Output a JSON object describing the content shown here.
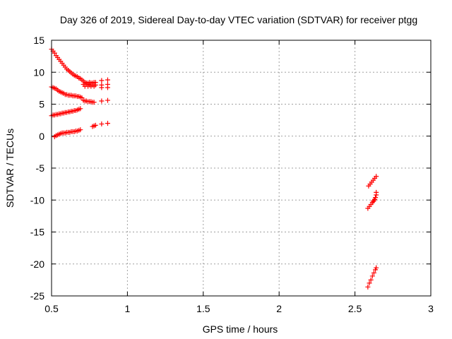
{
  "chart_data": {
    "type": "scatter",
    "title": "Day 326 of 2019, Sidereal Day-to-day VTEC variation (SDTVAR) for receiver ptgg",
    "xlabel": "GPS time / hours",
    "ylabel": "SDTVAR / TECUs",
    "xlim": [
      0.5,
      3
    ],
    "ylim": [
      -25,
      15
    ],
    "xticks": [
      0.5,
      1,
      1.5,
      2,
      2.5,
      3
    ],
    "yticks": [
      -25,
      -20,
      -15,
      -10,
      -5,
      0,
      5,
      10,
      15
    ],
    "xtick_labels": [
      "0.5",
      "1",
      "1.5",
      "2",
      "2.5",
      "3"
    ],
    "ytick_labels": [
      "-25",
      "-20",
      "-15",
      "-10",
      "-5",
      "0",
      "5",
      "10",
      "15"
    ],
    "grid": true,
    "marker": "plus",
    "color": "#ff0000",
    "series": [
      {
        "points": [
          [
            0.5,
            13.6
          ],
          [
            0.51,
            13.3
          ],
          [
            0.52,
            13.0
          ],
          [
            0.53,
            12.6
          ],
          [
            0.54,
            12.3
          ],
          [
            0.55,
            12.0
          ],
          [
            0.56,
            11.7
          ],
          [
            0.57,
            11.4
          ],
          [
            0.58,
            11.1
          ],
          [
            0.59,
            10.8
          ],
          [
            0.6,
            10.5
          ],
          [
            0.61,
            10.3
          ],
          [
            0.62,
            10.1
          ],
          [
            0.63,
            9.9
          ],
          [
            0.64,
            9.7
          ],
          [
            0.65,
            9.5
          ],
          [
            0.66,
            9.4
          ],
          [
            0.67,
            9.3
          ],
          [
            0.68,
            9.1
          ],
          [
            0.69,
            9.0
          ],
          [
            0.7,
            8.8
          ],
          [
            0.71,
            8.6
          ],
          [
            0.72,
            8.4
          ],
          [
            0.73,
            8.3
          ],
          [
            0.74,
            8.3
          ],
          [
            0.75,
            8.4
          ],
          [
            0.76,
            8.3
          ],
          [
            0.77,
            8.3
          ],
          [
            0.78,
            8.4
          ],
          [
            0.79,
            8.4
          ],
          [
            0.71,
            8.1
          ],
          [
            0.72,
            8.1
          ],
          [
            0.73,
            8.1
          ],
          [
            0.74,
            8.1
          ],
          [
            0.75,
            8.0
          ],
          [
            0.76,
            8.0
          ],
          [
            0.77,
            8.0
          ],
          [
            0.78,
            8.0
          ],
          [
            0.79,
            8.0
          ],
          [
            0.72,
            7.8
          ],
          [
            0.74,
            7.8
          ],
          [
            0.76,
            7.8
          ],
          [
            0.78,
            7.8
          ],
          [
            0.83,
            8.7
          ],
          [
            0.83,
            8.0
          ],
          [
            0.83,
            7.6
          ],
          [
            0.87,
            8.8
          ],
          [
            0.87,
            8.1
          ],
          [
            0.87,
            7.6
          ]
        ]
      },
      {
        "points": [
          [
            0.5,
            7.7
          ],
          [
            0.51,
            7.6
          ],
          [
            0.52,
            7.5
          ],
          [
            0.53,
            7.4
          ],
          [
            0.54,
            7.2
          ],
          [
            0.55,
            7.0
          ],
          [
            0.56,
            6.9
          ],
          [
            0.57,
            6.8
          ],
          [
            0.58,
            6.7
          ],
          [
            0.59,
            6.5
          ],
          [
            0.6,
            6.5
          ],
          [
            0.61,
            6.4
          ],
          [
            0.62,
            6.4
          ],
          [
            0.63,
            6.4
          ],
          [
            0.64,
            6.3
          ],
          [
            0.65,
            6.3
          ],
          [
            0.66,
            6.3
          ],
          [
            0.67,
            6.2
          ],
          [
            0.68,
            6.2
          ],
          [
            0.69,
            6.1
          ],
          [
            0.7,
            6.0
          ],
          [
            0.71,
            5.6
          ],
          [
            0.72,
            5.5
          ],
          [
            0.73,
            5.5
          ],
          [
            0.74,
            5.4
          ],
          [
            0.75,
            5.4
          ],
          [
            0.76,
            5.4
          ],
          [
            0.77,
            5.3
          ],
          [
            0.78,
            5.3
          ],
          [
            0.83,
            5.5
          ],
          [
            0.87,
            5.6
          ]
        ]
      },
      {
        "points": [
          [
            0.5,
            3.2
          ],
          [
            0.51,
            3.3
          ],
          [
            0.52,
            3.3
          ],
          [
            0.53,
            3.4
          ],
          [
            0.54,
            3.4
          ],
          [
            0.55,
            3.5
          ],
          [
            0.56,
            3.5
          ],
          [
            0.57,
            3.6
          ],
          [
            0.58,
            3.6
          ],
          [
            0.59,
            3.7
          ],
          [
            0.6,
            3.7
          ],
          [
            0.61,
            3.8
          ],
          [
            0.62,
            3.8
          ],
          [
            0.63,
            3.9
          ],
          [
            0.64,
            3.9
          ],
          [
            0.65,
            4.0
          ],
          [
            0.66,
            4.0
          ],
          [
            0.67,
            4.1
          ],
          [
            0.68,
            4.2
          ],
          [
            0.69,
            4.3
          ]
        ]
      },
      {
        "points": [
          [
            0.52,
            -0.1
          ],
          [
            0.53,
            0.1
          ],
          [
            0.54,
            0.2
          ],
          [
            0.55,
            0.3
          ],
          [
            0.56,
            0.4
          ],
          [
            0.57,
            0.5
          ],
          [
            0.58,
            0.5
          ],
          [
            0.59,
            0.5
          ],
          [
            0.6,
            0.6
          ],
          [
            0.61,
            0.6
          ],
          [
            0.62,
            0.6
          ],
          [
            0.63,
            0.7
          ],
          [
            0.64,
            0.7
          ],
          [
            0.65,
            0.7
          ],
          [
            0.66,
            0.8
          ],
          [
            0.67,
            0.8
          ],
          [
            0.68,
            0.9
          ],
          [
            0.69,
            1.0
          ],
          [
            0.77,
            1.5
          ],
          [
            0.78,
            1.6
          ],
          [
            0.79,
            1.7
          ],
          [
            0.83,
            1.9
          ],
          [
            0.87,
            2.0
          ]
        ]
      },
      {
        "points": [
          [
            2.59,
            -7.8
          ],
          [
            2.6,
            -7.5
          ],
          [
            2.61,
            -7.2
          ],
          [
            2.62,
            -6.9
          ],
          [
            2.63,
            -6.6
          ],
          [
            2.64,
            -6.3
          ]
        ]
      },
      {
        "points": [
          [
            2.585,
            -11.3
          ],
          [
            2.595,
            -11.0
          ],
          [
            2.605,
            -10.7
          ],
          [
            2.615,
            -10.4
          ],
          [
            2.625,
            -10.1
          ],
          [
            2.635,
            -9.6
          ],
          [
            2.64,
            -9.2
          ],
          [
            2.64,
            -8.8
          ],
          [
            2.63,
            -9.9
          ],
          [
            2.62,
            -10.2
          ]
        ]
      },
      {
        "points": [
          [
            2.585,
            -23.6
          ],
          [
            2.595,
            -23.0
          ],
          [
            2.605,
            -22.5
          ],
          [
            2.615,
            -21.9
          ],
          [
            2.625,
            -21.4
          ],
          [
            2.635,
            -20.9
          ],
          [
            2.64,
            -20.6
          ]
        ]
      }
    ]
  }
}
